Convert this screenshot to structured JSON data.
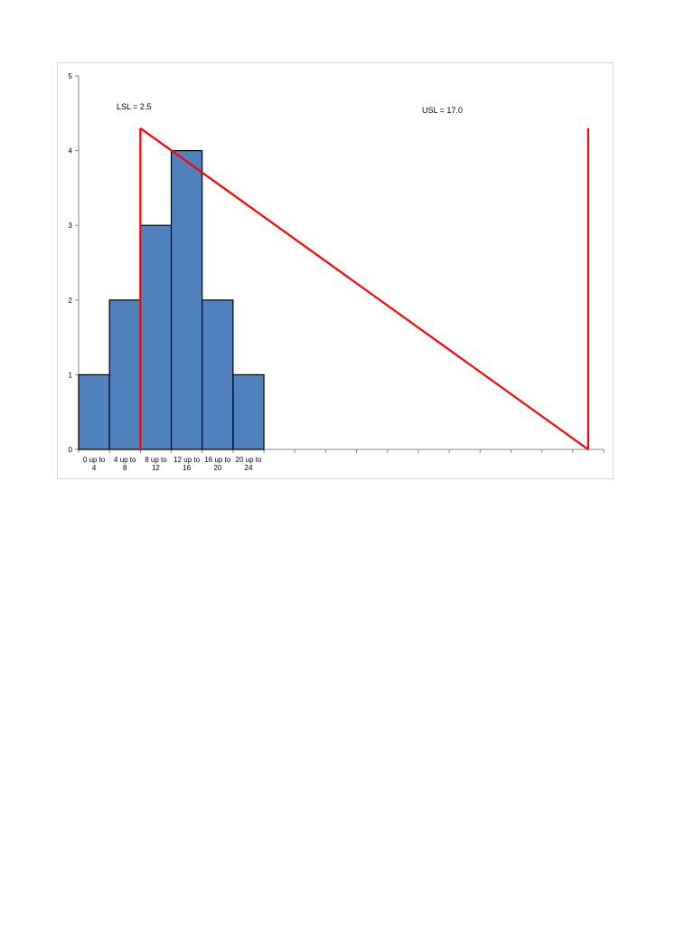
{
  "chart_data": {
    "type": "bar",
    "title": "",
    "xlabel": "",
    "ylabel": "",
    "categories": [
      "0 up to 4",
      "4 up to 8",
      "8 up to 12",
      "12 up to 16",
      "16 up to 20",
      "20 up to 24"
    ],
    "category_lines": [
      [
        "0 up to",
        "4"
      ],
      [
        "4 up to",
        "8"
      ],
      [
        "8 up to",
        "12"
      ],
      [
        "12 up to",
        "16"
      ],
      [
        "16 up to",
        "20"
      ],
      [
        "20 up to",
        "24"
      ]
    ],
    "values": [
      1,
      2,
      3,
      4,
      2,
      1
    ],
    "ylim": [
      0,
      5
    ],
    "yticks": [
      "0",
      "1",
      "2",
      "3",
      "4",
      "5"
    ],
    "x_slots": 17,
    "bar_color": "#4f81bd",
    "spec_color": "#ff0000",
    "annotations": {
      "lsl_label": "LSL = 2.5",
      "usl_label": "USL = 17.0"
    },
    "spec_lines": {
      "lsl_x_slot": 2.0,
      "usl_x_slot": 16.5,
      "top_value": 4.3
    },
    "grid": false,
    "legend": "none"
  }
}
